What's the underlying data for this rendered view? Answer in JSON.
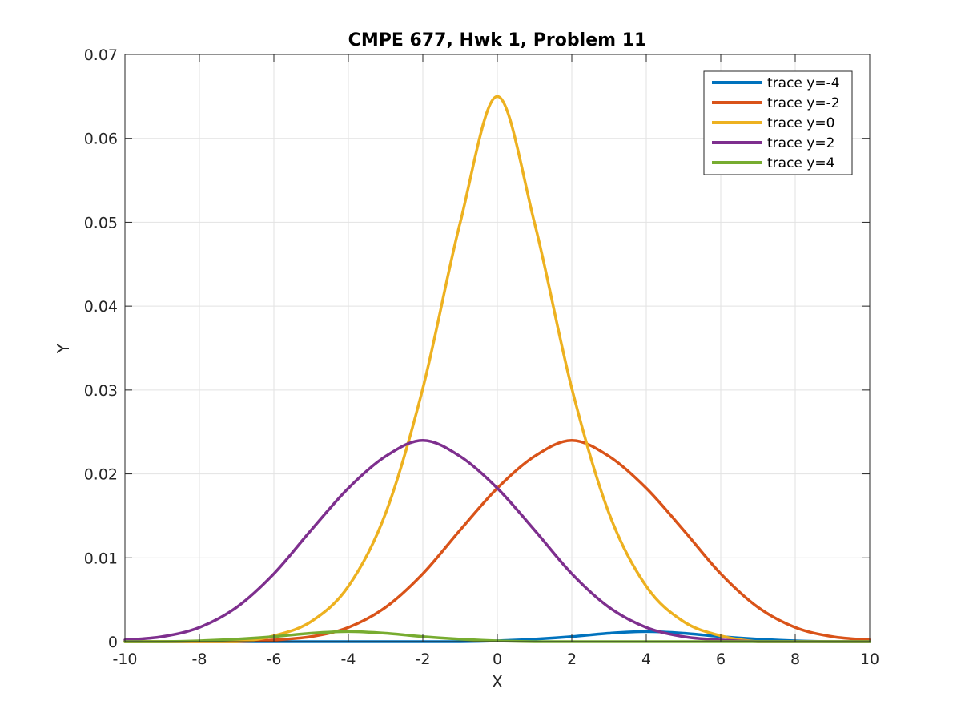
{
  "chart_data": {
    "type": "line",
    "title": "CMPE 677, Hwk 1, Problem 11",
    "xlabel": "X",
    "ylabel": "Y",
    "xlim": [
      -10,
      10
    ],
    "ylim": [
      0,
      0.07
    ],
    "x_ticks": [
      -10,
      -8,
      -6,
      -4,
      -2,
      0,
      2,
      4,
      6,
      8,
      10
    ],
    "y_ticks": [
      0,
      0.01,
      0.02,
      0.03,
      0.04,
      0.05,
      0.06,
      0.07
    ],
    "x_tick_labels": [
      "-10",
      "-8",
      "-6",
      "-4",
      "-2",
      "0",
      "2",
      "4",
      "6",
      "8",
      "10"
    ],
    "y_tick_labels": [
      "0",
      "0.01",
      "0.02",
      "0.03",
      "0.04",
      "0.05",
      "0.06",
      "0.07"
    ],
    "grid": true,
    "legend_position": "top-right",
    "x": [
      -10,
      -9,
      -8,
      -7,
      -6,
      -5,
      -4,
      -3,
      -2,
      -1,
      0,
      1,
      2,
      3,
      4,
      5,
      6,
      7,
      8,
      9,
      10
    ],
    "series": [
      {
        "name": "trace y=-4",
        "color": "#0072bd",
        "values": [
          0.0,
          0.0,
          0.0,
          0.0,
          0.0,
          0.0,
          0.0,
          0.0,
          0.0,
          0.0,
          0.0001,
          0.0003,
          0.0006,
          0.001,
          0.0012,
          0.001,
          0.0006,
          0.0003,
          0.0001,
          0.0,
          0.0
        ]
      },
      {
        "name": "trace y=-2",
        "color": "#d95319",
        "values": [
          0.0,
          0.0,
          0.0,
          0.0,
          0.0002,
          0.0006,
          0.0017,
          0.0041,
          0.0081,
          0.0133,
          0.0183,
          0.0221,
          0.024,
          0.0221,
          0.0183,
          0.0133,
          0.0081,
          0.0041,
          0.0017,
          0.0006,
          0.0002
        ]
      },
      {
        "name": "trace y=0",
        "color": "#edb120",
        "values": [
          0.0,
          0.0,
          0.0,
          0.0,
          0.0007,
          0.0024,
          0.0066,
          0.0153,
          0.0302,
          0.0499,
          0.065,
          0.0499,
          0.0302,
          0.0153,
          0.0066,
          0.0024,
          0.0007,
          0.0,
          0.0,
          0.0,
          0.0
        ]
      },
      {
        "name": "trace y=2",
        "color": "#7e2f8e",
        "values": [
          0.0002,
          0.0006,
          0.0017,
          0.0041,
          0.0081,
          0.0133,
          0.0183,
          0.0221,
          0.024,
          0.0221,
          0.0183,
          0.0133,
          0.0081,
          0.0041,
          0.0017,
          0.0006,
          0.0002,
          0.0,
          0.0,
          0.0,
          0.0
        ]
      },
      {
        "name": "trace y=4",
        "color": "#77ac30",
        "values": [
          0.0,
          0.0,
          0.0001,
          0.0003,
          0.0006,
          0.001,
          0.0012,
          0.001,
          0.0006,
          0.0003,
          0.0001,
          0.0,
          0.0,
          0.0,
          0.0,
          0.0,
          0.0,
          0.0,
          0.0,
          0.0,
          0.0
        ]
      }
    ]
  }
}
